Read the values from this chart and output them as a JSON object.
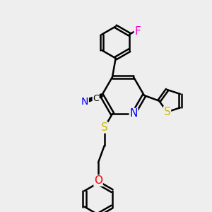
{
  "bg_color": "#eeeeee",
  "bond_color": "#000000",
  "bond_width": 1.8,
  "atom_colors": {
    "N": "#0000ff",
    "S": "#ccbb00",
    "O": "#ff0000",
    "F": "#ff00cc",
    "C": "#000000"
  },
  "font_size": 10
}
